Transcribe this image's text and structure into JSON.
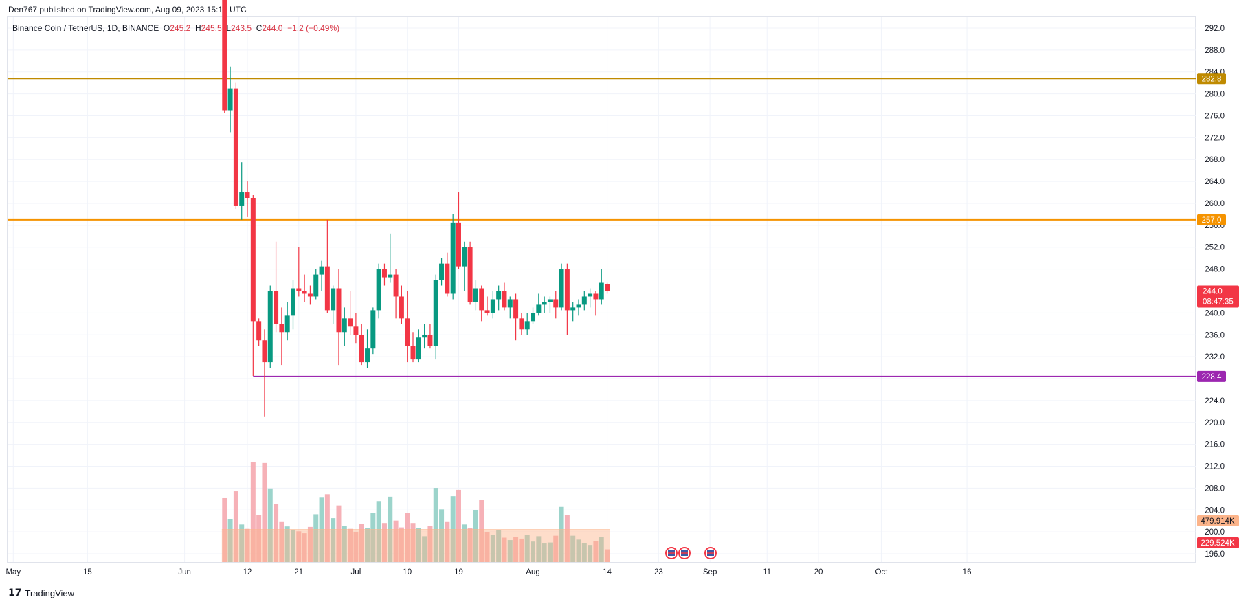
{
  "header": {
    "published": "Den767 published on TradingView.com, Aug 09, 2023 15:12 UTC"
  },
  "legend": {
    "symbol": "Binance Coin / TetherUS, 1D, BINANCE",
    "o_label": "O",
    "o_value": "245.2",
    "h_label": "H",
    "h_value": "245.5",
    "l_label": "L",
    "l_value": "243.5",
    "c_label": "C",
    "c_value": "244.0",
    "change": "−1.2 (−0.49%)"
  },
  "brand": {
    "name": "TradingView",
    "logo": "17"
  },
  "colors": {
    "up": "#089981",
    "down": "#f23645",
    "level_top": "#bf8a00",
    "level_mid": "#f59300",
    "level_low": "#9c27b0",
    "grid": "#f0f3fa",
    "axis_text": "#131722",
    "vol_up": "#8bcdc2",
    "vol_down": "#f4a3aa",
    "vol_ma": "#fcb48a"
  },
  "chart_data": {
    "type": "candlestick",
    "y_axis": {
      "range": [
        194.5,
        294.0
      ],
      "ticks": [
        "292.0",
        "288.0",
        "284.0",
        "280.0",
        "276.0",
        "272.0",
        "268.0",
        "264.0",
        "260.0",
        "256.0",
        "252.0",
        "248.0",
        "244.0",
        "240.0",
        "236.0",
        "232.0",
        "228.0",
        "224.0",
        "220.0",
        "216.0",
        "212.0",
        "208.0",
        "204.0",
        "200.0",
        "196.0"
      ]
    },
    "x_axis": {
      "labels": [
        {
          "text": "May",
          "day": 2
        },
        {
          "text": "15",
          "day": 15
        },
        {
          "text": "Jun",
          "day": 32
        },
        {
          "text": "12",
          "day": 43
        },
        {
          "text": "21",
          "day": 52
        },
        {
          "text": "Jul",
          "day": 62
        },
        {
          "text": "10",
          "day": 71
        },
        {
          "text": "19",
          "day": 80
        },
        {
          "text": "Aug",
          "day": 93
        },
        {
          "text": "14",
          "day": 106
        },
        {
          "text": "23",
          "day": 115
        },
        {
          "text": "Sep",
          "day": 124
        },
        {
          "text": "11",
          "day": 134
        },
        {
          "text": "20",
          "day": 143
        },
        {
          "text": "Oct",
          "day": 154
        },
        {
          "text": "16",
          "day": 169
        }
      ]
    },
    "levels": [
      {
        "value": 282.8,
        "label": "282.8",
        "color": "#bf8a00"
      },
      {
        "value": 257.0,
        "label": "257.0",
        "color": "#f59300"
      },
      {
        "value": 228.4,
        "label": "228.4",
        "color": "#9c27b0"
      }
    ],
    "last_price": {
      "value": 244.0,
      "label": "244.0",
      "countdown": "08:47:35"
    },
    "volume_labels": [
      {
        "label": "479.914K",
        "color": "#fcb48a"
      },
      {
        "label": "229.524K",
        "color": "#f23645"
      }
    ],
    "volume_ma": 6.6,
    "candles": [
      {
        "day": 39,
        "o": 298.0,
        "h": 300.0,
        "l": 276.5,
        "c": 277.0,
        "v": 13.1
      },
      {
        "day": 40,
        "o": 277.0,
        "h": 285.0,
        "l": 273.0,
        "c": 281.0,
        "v": 8.8
      },
      {
        "day": 41,
        "o": 281.0,
        "h": 282.0,
        "l": 259.0,
        "c": 259.5,
        "v": 14.5
      },
      {
        "day": 42,
        "o": 259.5,
        "h": 267.5,
        "l": 257.0,
        "c": 262.0,
        "v": 7.7
      },
      {
        "day": 43,
        "o": 262.0,
        "h": 264.0,
        "l": 257.5,
        "c": 261.0,
        "v": 6.8
      },
      {
        "day": 44,
        "o": 261.0,
        "h": 261.5,
        "l": 228.5,
        "c": 238.5,
        "v": 20.5
      },
      {
        "day": 45,
        "o": 238.5,
        "h": 239.0,
        "l": 234.0,
        "c": 235.0,
        "v": 9.7
      },
      {
        "day": 46,
        "o": 235.0,
        "h": 237.0,
        "l": 221.0,
        "c": 231.0,
        "v": 20.3
      },
      {
        "day": 47,
        "o": 231.0,
        "h": 245.0,
        "l": 230.0,
        "c": 244.0,
        "v": 15.1
      },
      {
        "day": 48,
        "o": 244.0,
        "h": 253.0,
        "l": 236.5,
        "c": 238.0,
        "v": 11.9
      },
      {
        "day": 49,
        "o": 238.0,
        "h": 241.0,
        "l": 230.5,
        "c": 236.5,
        "v": 8.2
      },
      {
        "day": 50,
        "o": 236.5,
        "h": 242.0,
        "l": 235.0,
        "c": 239.5,
        "v": 7.3
      },
      {
        "day": 51,
        "o": 239.5,
        "h": 246.0,
        "l": 237.0,
        "c": 244.5,
        "v": 6.7
      },
      {
        "day": 52,
        "o": 244.5,
        "h": 252.0,
        "l": 243.0,
        "c": 244.0,
        "v": 6.3
      },
      {
        "day": 53,
        "o": 244.0,
        "h": 247.0,
        "l": 242.0,
        "c": 243.5,
        "v": 5.9
      },
      {
        "day": 54,
        "o": 243.5,
        "h": 245.0,
        "l": 241.5,
        "c": 243.0,
        "v": 7.2
      },
      {
        "day": 55,
        "o": 243.0,
        "h": 248.0,
        "l": 242.5,
        "c": 247.0,
        "v": 9.8
      },
      {
        "day": 56,
        "o": 247.0,
        "h": 249.5,
        "l": 244.0,
        "c": 248.5,
        "v": 13.2
      },
      {
        "day": 57,
        "o": 248.5,
        "h": 257.0,
        "l": 240.0,
        "c": 240.5,
        "v": 13.9
      },
      {
        "day": 58,
        "o": 240.5,
        "h": 245.0,
        "l": 238.0,
        "c": 244.5,
        "v": 9.0
      },
      {
        "day": 59,
        "o": 244.5,
        "h": 248.0,
        "l": 230.5,
        "c": 236.5,
        "v": 11.6
      },
      {
        "day": 60,
        "o": 236.5,
        "h": 241.0,
        "l": 234.0,
        "c": 239.0,
        "v": 7.4
      },
      {
        "day": 61,
        "o": 239.0,
        "h": 244.0,
        "l": 236.0,
        "c": 237.5,
        "v": 6.8
      },
      {
        "day": 62,
        "o": 237.5,
        "h": 240.0,
        "l": 234.5,
        "c": 236.0,
        "v": 6.2
      },
      {
        "day": 63,
        "o": 236.0,
        "h": 238.0,
        "l": 230.5,
        "c": 231.0,
        "v": 7.8
      },
      {
        "day": 64,
        "o": 231.0,
        "h": 237.0,
        "l": 230.0,
        "c": 233.5,
        "v": 6.9
      },
      {
        "day": 65,
        "o": 233.5,
        "h": 241.0,
        "l": 232.5,
        "c": 240.5,
        "v": 10.0
      },
      {
        "day": 66,
        "o": 240.5,
        "h": 249.0,
        "l": 239.0,
        "c": 248.0,
        "v": 12.5
      },
      {
        "day": 67,
        "o": 248.0,
        "h": 249.0,
        "l": 245.0,
        "c": 246.5,
        "v": 8.0
      },
      {
        "day": 68,
        "o": 246.5,
        "h": 254.5,
        "l": 245.5,
        "c": 247.0,
        "v": 13.4
      },
      {
        "day": 69,
        "o": 247.0,
        "h": 248.0,
        "l": 239.0,
        "c": 243.0,
        "v": 8.5
      },
      {
        "day": 70,
        "o": 243.0,
        "h": 245.0,
        "l": 238.0,
        "c": 239.0,
        "v": 7.1
      },
      {
        "day": 71,
        "o": 239.0,
        "h": 244.0,
        "l": 231.0,
        "c": 234.0,
        "v": 10.1
      },
      {
        "day": 72,
        "o": 234.0,
        "h": 236.5,
        "l": 231.0,
        "c": 231.5,
        "v": 8.0
      },
      {
        "day": 73,
        "o": 231.5,
        "h": 237.0,
        "l": 231.0,
        "c": 235.5,
        "v": 7.0
      },
      {
        "day": 74,
        "o": 235.5,
        "h": 238.0,
        "l": 233.5,
        "c": 236.0,
        "v": 5.3
      },
      {
        "day": 75,
        "o": 236.0,
        "h": 238.0,
        "l": 233.5,
        "c": 234.0,
        "v": 7.4
      },
      {
        "day": 76,
        "o": 234.0,
        "h": 247.0,
        "l": 231.5,
        "c": 246.0,
        "v": 15.2
      },
      {
        "day": 77,
        "o": 246.0,
        "h": 250.0,
        "l": 245.0,
        "c": 249.0,
        "v": 10.8
      },
      {
        "day": 78,
        "o": 249.0,
        "h": 251.0,
        "l": 243.0,
        "c": 243.5,
        "v": 8.2
      },
      {
        "day": 79,
        "o": 243.5,
        "h": 258.0,
        "l": 242.5,
        "c": 256.5,
        "v": 13.5
      },
      {
        "day": 80,
        "o": 256.5,
        "h": 262.0,
        "l": 248.0,
        "c": 248.5,
        "v": 14.8
      },
      {
        "day": 81,
        "o": 248.5,
        "h": 253.0,
        "l": 244.0,
        "c": 252.0,
        "v": 7.7
      },
      {
        "day": 82,
        "o": 252.0,
        "h": 253.0,
        "l": 241.5,
        "c": 242.0,
        "v": 7.0
      },
      {
        "day": 83,
        "o": 242.0,
        "h": 246.0,
        "l": 240.5,
        "c": 244.5,
        "v": 10.6
      },
      {
        "day": 84,
        "o": 244.5,
        "h": 245.0,
        "l": 238.5,
        "c": 240.5,
        "v": 12.8
      },
      {
        "day": 85,
        "o": 240.5,
        "h": 243.0,
        "l": 239.5,
        "c": 240.0,
        "v": 6.1
      },
      {
        "day": 86,
        "o": 240.0,
        "h": 244.0,
        "l": 239.0,
        "c": 242.5,
        "v": 5.6
      },
      {
        "day": 87,
        "o": 242.5,
        "h": 245.0,
        "l": 240.5,
        "c": 244.0,
        "v": 6.6
      },
      {
        "day": 88,
        "o": 244.0,
        "h": 245.5,
        "l": 240.5,
        "c": 241.0,
        "v": 5.0
      },
      {
        "day": 89,
        "o": 241.0,
        "h": 243.0,
        "l": 239.0,
        "c": 242.5,
        "v": 4.5
      },
      {
        "day": 90,
        "o": 242.5,
        "h": 243.5,
        "l": 235.0,
        "c": 239.0,
        "v": 5.2
      },
      {
        "day": 91,
        "o": 239.0,
        "h": 240.0,
        "l": 236.0,
        "c": 237.0,
        "v": 4.8
      },
      {
        "day": 92,
        "o": 237.0,
        "h": 240.0,
        "l": 236.0,
        "c": 238.5,
        "v": 5.6
      },
      {
        "day": 93,
        "o": 238.5,
        "h": 241.0,
        "l": 238.0,
        "c": 240.0,
        "v": 4.2
      },
      {
        "day": 94,
        "o": 240.0,
        "h": 243.5,
        "l": 239.5,
        "c": 241.5,
        "v": 5.3
      },
      {
        "day": 95,
        "o": 241.5,
        "h": 243.0,
        "l": 240.0,
        "c": 242.0,
        "v": 3.8
      },
      {
        "day": 96,
        "o": 242.0,
        "h": 243.0,
        "l": 240.0,
        "c": 242.5,
        "v": 4.0
      },
      {
        "day": 97,
        "o": 242.5,
        "h": 244.0,
        "l": 239.0,
        "c": 241.0,
        "v": 5.4
      },
      {
        "day": 98,
        "o": 241.0,
        "h": 249.0,
        "l": 240.5,
        "c": 248.0,
        "v": 11.3
      },
      {
        "day": 99,
        "o": 248.0,
        "h": 249.0,
        "l": 236.0,
        "c": 240.5,
        "v": 9.6
      },
      {
        "day": 100,
        "o": 240.5,
        "h": 242.0,
        "l": 238.5,
        "c": 241.0,
        "v": 5.4
      },
      {
        "day": 101,
        "o": 241.0,
        "h": 242.5,
        "l": 239.5,
        "c": 241.5,
        "v": 4.6
      },
      {
        "day": 102,
        "o": 241.5,
        "h": 244.0,
        "l": 240.5,
        "c": 243.0,
        "v": 3.9
      },
      {
        "day": 103,
        "o": 243.0,
        "h": 244.5,
        "l": 241.0,
        "c": 243.5,
        "v": 3.5
      },
      {
        "day": 104,
        "o": 243.5,
        "h": 244.0,
        "l": 239.5,
        "c": 242.5,
        "v": 4.3
      },
      {
        "day": 105,
        "o": 242.5,
        "h": 248.0,
        "l": 241.5,
        "c": 245.5,
        "v": 5.1
      },
      {
        "day": 106,
        "o": 245.2,
        "h": 245.5,
        "l": 243.5,
        "c": 244.0,
        "v": 2.6
      }
    ]
  }
}
